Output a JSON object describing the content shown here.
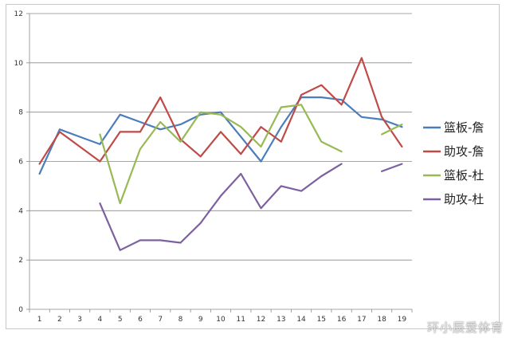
{
  "watermark": "环小辰爱体育",
  "chart_data": {
    "type": "line",
    "title": "",
    "xlabel": "",
    "ylabel": "",
    "categories": [
      "1",
      "2",
      "3",
      "4",
      "5",
      "6",
      "7",
      "8",
      "9",
      "10",
      "11",
      "12",
      "13",
      "14",
      "15",
      "16",
      "17",
      "18",
      "19"
    ],
    "ylim": [
      0,
      12
    ],
    "yticks": [
      0,
      2,
      4,
      6,
      8,
      10,
      12
    ],
    "grid": "horizontal",
    "legend": "right",
    "series": [
      {
        "name": "篮板-詹",
        "color": "#4a7ebb",
        "values": [
          5.5,
          7.3,
          7.0,
          6.7,
          7.9,
          7.6,
          7.3,
          7.5,
          7.9,
          8.0,
          7.0,
          6.0,
          7.4,
          8.6,
          8.6,
          8.5,
          7.8,
          7.7,
          7.4
        ]
      },
      {
        "name": "助攻-詹",
        "color": "#be4b48",
        "values": [
          5.9,
          7.2,
          6.6,
          6.0,
          7.2,
          7.2,
          8.6,
          6.9,
          6.2,
          7.2,
          6.3,
          7.4,
          6.8,
          8.7,
          9.1,
          8.3,
          10.2,
          7.8,
          6.6
        ]
      },
      {
        "name": "篮板-杜",
        "color": "#98b954",
        "values": [
          null,
          null,
          null,
          7.1,
          4.3,
          6.5,
          7.6,
          6.8,
          8.0,
          7.9,
          7.4,
          6.6,
          8.2,
          8.3,
          6.8,
          6.4,
          null,
          7.1,
          7.5
        ]
      },
      {
        "name": "助攻-杜",
        "color": "#7d60a0",
        "values": [
          null,
          null,
          null,
          4.3,
          2.4,
          2.8,
          2.8,
          2.7,
          3.5,
          4.6,
          5.5,
          4.1,
          5.0,
          4.8,
          5.4,
          5.9,
          null,
          5.6,
          5.9
        ]
      }
    ]
  }
}
